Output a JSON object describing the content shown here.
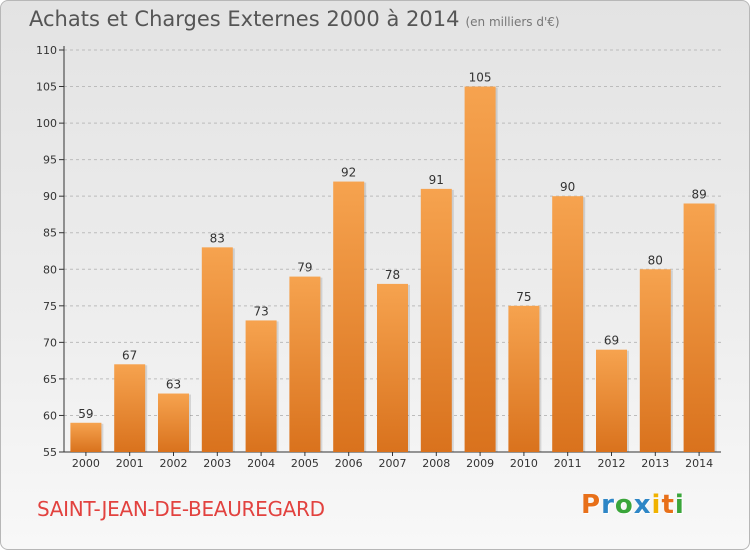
{
  "header": {
    "title": "Achats et Charges Externes 2000 à 2014",
    "subtitle": "(en milliers d'€)"
  },
  "footer": {
    "commune": "SAINT-JEAN-DE-BEAUREGARD",
    "brand": "Proxiti",
    "brand_colors": [
      "#e8701a",
      "#2d86c6",
      "#3aa53a",
      "#2d86c6",
      "#f0b200",
      "#e8701a",
      "#3aa53a"
    ]
  },
  "colors": {
    "bar_top": "#f6a34f",
    "bar_bottom": "#d9721d",
    "axis": "#333333",
    "grid": "#bcbcbc",
    "commune": "#e2423f"
  },
  "chart_data": {
    "type": "bar",
    "categories": [
      "2000",
      "2001",
      "2002",
      "2003",
      "2004",
      "2005",
      "2006",
      "2007",
      "2008",
      "2009",
      "2010",
      "2011",
      "2012",
      "2013",
      "2014"
    ],
    "values": [
      59,
      67,
      63,
      83,
      73,
      79,
      92,
      78,
      91,
      105,
      75,
      90,
      69,
      80,
      89
    ],
    "title": "Achats et Charges Externes 2000 à 2014",
    "subtitle": "(en milliers d'€)",
    "ylim": [
      55,
      110
    ],
    "yticks": [
      55,
      60,
      65,
      70,
      75,
      80,
      85,
      90,
      95,
      100,
      105,
      110
    ],
    "grid": "horizontal dashed",
    "data_labels": true
  }
}
